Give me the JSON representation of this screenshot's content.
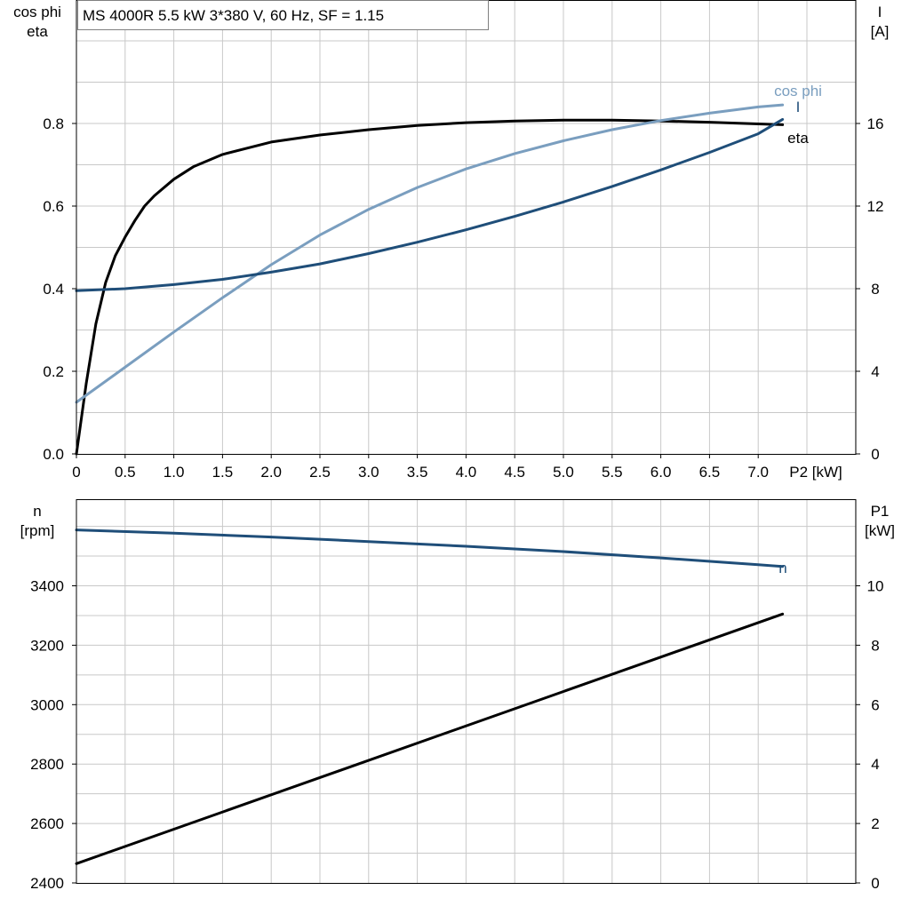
{
  "chart_data": [
    {
      "type": "line",
      "title": "MS 4000R   5.5 kW   3*380 V, 60 Hz, SF = 1.15",
      "xlabel": "P2 [kW]",
      "ylabel_left": [
        "cos phi",
        "eta"
      ],
      "ylabel_right": [
        "I",
        "[A]"
      ],
      "xlim": [
        0,
        8
      ],
      "ylim_left": [
        0,
        1.0
      ],
      "ylim_right": [
        0,
        20
      ],
      "x_ticks": [
        "0",
        "0.5",
        "1.0",
        "1.5",
        "2.0",
        "2.5",
        "3.0",
        "3.5",
        "4.0",
        "4.5",
        "5.0",
        "5.5",
        "6.0",
        "6.5",
        "7.0"
      ],
      "y_ticks_left": [
        "0.0",
        "0.2",
        "0.4",
        "0.6",
        "0.8"
      ],
      "y_ticks_right": [
        "0",
        "4",
        "8",
        "12",
        "16"
      ],
      "grid": true,
      "series": [
        {
          "name": "eta",
          "axis": "left",
          "color": "#000000",
          "x": [
            0,
            0.1,
            0.2,
            0.3,
            0.4,
            0.5,
            0.6,
            0.7,
            0.8,
            1.0,
            1.2,
            1.5,
            2.0,
            2.5,
            3.0,
            3.5,
            4.0,
            4.5,
            5.0,
            5.5,
            6.0,
            6.5,
            7.0,
            7.25
          ],
          "y": [
            0.0,
            0.17,
            0.315,
            0.415,
            0.48,
            0.525,
            0.565,
            0.6,
            0.625,
            0.665,
            0.695,
            0.725,
            0.755,
            0.772,
            0.785,
            0.795,
            0.802,
            0.806,
            0.808,
            0.808,
            0.806,
            0.803,
            0.799,
            0.797
          ]
        },
        {
          "name": "cos phi",
          "axis": "left",
          "color": "#7a9ebf",
          "x": [
            0,
            0.5,
            1.0,
            1.5,
            2.0,
            2.5,
            3.0,
            3.5,
            4.0,
            4.5,
            5.0,
            5.5,
            6.0,
            6.5,
            7.0,
            7.25
          ],
          "y": [
            0.125,
            0.21,
            0.295,
            0.378,
            0.458,
            0.53,
            0.592,
            0.645,
            0.69,
            0.727,
            0.758,
            0.785,
            0.807,
            0.825,
            0.84,
            0.845
          ]
        },
        {
          "name": "I",
          "axis": "right",
          "color": "#1f4e79",
          "x": [
            0,
            0.5,
            1.0,
            1.5,
            2.0,
            2.5,
            3.0,
            3.5,
            4.0,
            4.5,
            5.0,
            5.5,
            6.0,
            6.5,
            7.0,
            7.25
          ],
          "y": [
            7.9,
            8.0,
            8.2,
            8.45,
            8.8,
            9.2,
            9.7,
            10.25,
            10.85,
            11.5,
            12.2,
            12.95,
            13.75,
            14.6,
            15.5,
            16.2
          ]
        }
      ]
    },
    {
      "type": "line",
      "xlabel": "",
      "ylabel_left": [
        "n",
        "[rpm]"
      ],
      "ylabel_right": [
        "P1",
        "[kW]"
      ],
      "xlim": [
        0,
        8
      ],
      "ylim_left": [
        2400,
        3600
      ],
      "ylim_right": [
        0,
        12
      ],
      "y_ticks_left": [
        "2400",
        "2600",
        "2800",
        "3000",
        "3200",
        "3400"
      ],
      "y_ticks_right": [
        "0",
        "2",
        "4",
        "6",
        "8",
        "10"
      ],
      "grid": true,
      "series": [
        {
          "name": "n",
          "axis": "left",
          "color": "#1f4e79",
          "x": [
            0,
            1,
            2,
            3,
            4,
            5,
            6,
            7,
            7.25
          ],
          "y": [
            3588,
            3577,
            3564,
            3549,
            3533,
            3515,
            3494,
            3471,
            3465
          ]
        },
        {
          "axis": "right",
          "color": "#000000",
          "x": [
            0,
            7.25
          ],
          "y": [
            0.65,
            9.05
          ]
        }
      ]
    }
  ]
}
